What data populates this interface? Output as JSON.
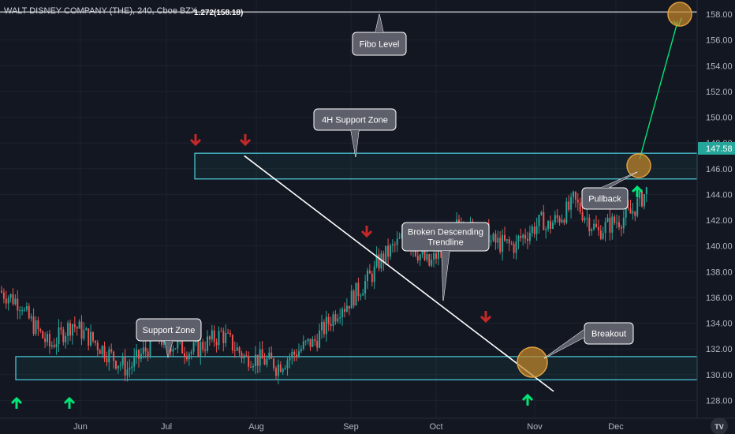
{
  "header": {
    "title": "WALT DISNEY COMPANY (THE), 240, Cboe BZX"
  },
  "colors": {
    "background": "#131722",
    "up": "#26a69a",
    "down": "#ef5350",
    "zone": "#4dd0e1",
    "trendline": "#ffffff",
    "callout_bg": "#5d606b",
    "arrow_up": "#00e676",
    "arrow_down": "#c62828",
    "marker": "#c8892a",
    "target_line": "#00e676"
  },
  "chart_data": {
    "type": "candlestick",
    "x_axis": {
      "labels": [
        "Jun",
        "Jul",
        "Aug",
        "Sep",
        "Oct",
        "Nov",
        "Dec"
      ]
    },
    "y_axis": {
      "range": [
        127.2,
        159.2
      ],
      "ticks": [
        128.0,
        130.0,
        132.0,
        134.0,
        136.0,
        138.0,
        140.0,
        142.0,
        144.0,
        146.0,
        148.0,
        150.0,
        152.0,
        154.0,
        156.0,
        158.0
      ]
    },
    "last_price": "147.58",
    "fibo_level": {
      "label": "1.272(158.18)",
      "value": 158.18
    },
    "zones": [
      {
        "name": "4H Support Zone",
        "low": 145.2,
        "high": 147.2
      },
      {
        "name": "Support Zone",
        "low": 129.6,
        "high": 131.4
      }
    ],
    "trendline": {
      "from": {
        "date": "Jul 27",
        "price": 147.0
      },
      "to": {
        "date": "Nov 8",
        "price": 128.7
      }
    },
    "annotations": [
      {
        "id": "fibo",
        "text": [
          "Fibo Level"
        ]
      },
      {
        "id": "support4h",
        "text": [
          "4H Support Zone"
        ]
      },
      {
        "id": "broken",
        "text": [
          "Broken Descending",
          "Trendline"
        ]
      },
      {
        "id": "support",
        "text": [
          "Support Zone"
        ]
      },
      {
        "id": "breakout",
        "text": [
          "Breakout"
        ]
      },
      {
        "id": "pullback",
        "text": [
          "Pullback"
        ]
      }
    ],
    "projection": {
      "from": {
        "date": "Dec 8",
        "price": 146.0
      },
      "to": {
        "date": "Dec 25",
        "price": 158.2
      }
    },
    "price_path": [
      [
        136.5,
        8
      ],
      [
        135.5,
        10
      ],
      [
        132.2,
        12
      ],
      [
        134.0,
        10
      ],
      [
        132.5,
        10
      ],
      [
        130.4,
        14
      ],
      [
        133.0,
        14
      ],
      [
        131.8,
        14
      ],
      [
        133.0,
        12
      ],
      [
        131.2,
        12
      ],
      [
        130.9,
        12
      ],
      [
        132.5,
        16
      ],
      [
        135.5,
        14
      ],
      [
        138.0,
        14
      ],
      [
        140.5,
        12
      ],
      [
        138.5,
        12
      ],
      [
        142.0,
        14
      ],
      [
        141.0,
        12
      ],
      [
        140.0,
        12
      ],
      [
        142.0,
        12
      ],
      [
        143.0,
        12
      ],
      [
        141.0,
        12
      ],
      [
        142.5,
        14
      ],
      [
        145.0,
        10
      ],
      [
        143.0,
        10
      ],
      [
        142.0,
        10
      ],
      [
        141.5,
        10
      ],
      [
        144.0,
        10
      ],
      [
        146.8,
        8
      ],
      [
        144.0,
        10
      ],
      [
        141.0,
        10
      ],
      [
        139.0,
        14
      ],
      [
        136.0,
        14
      ],
      [
        135.5,
        12
      ],
      [
        137.0,
        12
      ],
      [
        138.5,
        14
      ],
      [
        136.5,
        12
      ],
      [
        135.5,
        10
      ],
      [
        135.5,
        10
      ],
      [
        134.5,
        12
      ],
      [
        135.5,
        12
      ],
      [
        137.5,
        12
      ],
      [
        139.0,
        12
      ],
      [
        140.0,
        12
      ],
      [
        138.0,
        12
      ],
      [
        136.0,
        12
      ],
      [
        137.0,
        12
      ],
      [
        133.0,
        14
      ],
      [
        131.5,
        12
      ],
      [
        130.5,
        12
      ],
      [
        129.5,
        12
      ],
      [
        128.3,
        10
      ],
      [
        128.6,
        12
      ],
      [
        130.0,
        12
      ],
      [
        129.5,
        12
      ],
      [
        130.5,
        12
      ],
      [
        131.0,
        10
      ],
      [
        133.2,
        10
      ],
      [
        131.5,
        12
      ],
      [
        130.0,
        12
      ],
      [
        129.0,
        10
      ],
      [
        130.5,
        12
      ],
      [
        132.5,
        12
      ],
      [
        133.0,
        10
      ],
      [
        132.0,
        10
      ],
      [
        136.0,
        8
      ],
      [
        139.0,
        8
      ],
      [
        137.0,
        8
      ],
      [
        142.0,
        10
      ],
      [
        146.0,
        10
      ],
      [
        149.5,
        10
      ],
      [
        147.0,
        10
      ],
      [
        148.5,
        12
      ],
      [
        149.5,
        12
      ],
      [
        147.5,
        12
      ],
      [
        149.0,
        12
      ],
      [
        150.5,
        12
      ],
      [
        152.5,
        10
      ],
      [
        153.2,
        8
      ],
      [
        150.5,
        12
      ],
      [
        149.0,
        12
      ],
      [
        147.5,
        12
      ],
      [
        146.2,
        10
      ],
      [
        147.58,
        10
      ]
    ]
  },
  "logo": {
    "text": "TV"
  }
}
